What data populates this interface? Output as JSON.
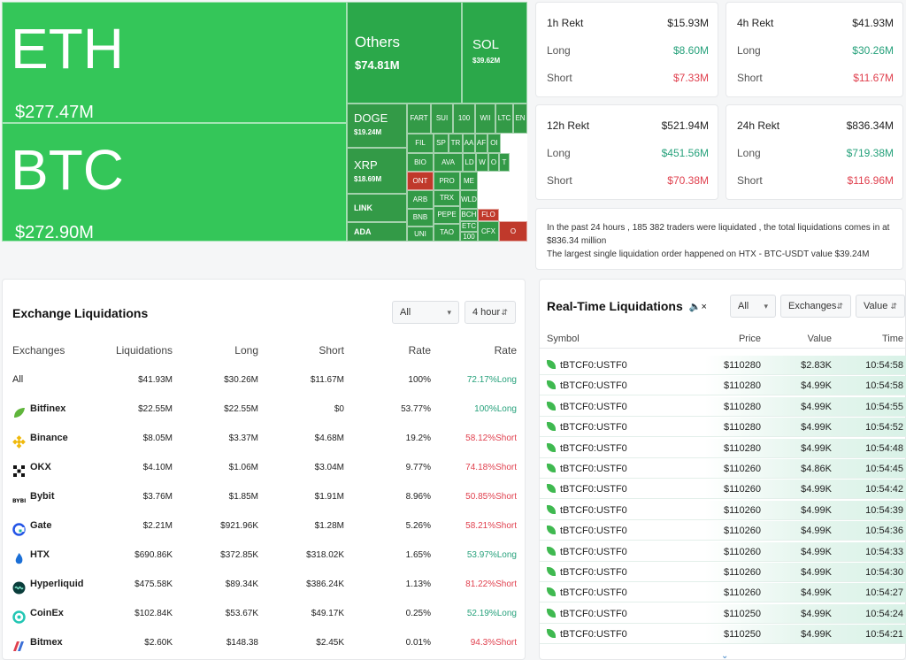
{
  "treemap": {
    "eth": {
      "symbol": "ETH",
      "amount": "$277.47M"
    },
    "btc": {
      "symbol": "BTC",
      "amount": "$272.90M"
    },
    "others": {
      "symbol": "Others",
      "amount": "$74.81M"
    },
    "sol": {
      "symbol": "SOL",
      "amount": "$39.62M"
    },
    "doge": {
      "symbol": "DOGE",
      "amount": "$19.24M"
    },
    "xrp": {
      "symbol": "XRP",
      "amount": "$18.69M"
    },
    "link": {
      "symbol": "LINK"
    },
    "ada": {
      "symbol": "ADA"
    },
    "small": [
      "FART",
      "SUI",
      "100",
      "WII",
      "LTC",
      "EN",
      "FIL",
      "SP",
      "TR",
      "AA",
      "AF",
      "OI",
      "BIO",
      "AVA",
      "LD",
      "W",
      "O",
      "T",
      "ONT",
      "PRO",
      "ME",
      "TRX",
      "WLD",
      "ARB",
      "BNB",
      "PEPE",
      "BCH",
      "ETC",
      "FLO",
      "UNI",
      "TAO",
      "100",
      "CFX",
      "O"
    ]
  },
  "rekt": [
    {
      "title": "1h Rekt",
      "total": "$15.93M",
      "long_label": "Long",
      "long": "$8.60M",
      "short_label": "Short",
      "short": "$7.33M"
    },
    {
      "title": "4h Rekt",
      "total": "$41.93M",
      "long_label": "Long",
      "long": "$30.26M",
      "short_label": "Short",
      "short": "$11.67M"
    },
    {
      "title": "12h Rekt",
      "total": "$521.94M",
      "long_label": "Long",
      "long": "$451.56M",
      "short_label": "Short",
      "short": "$70.38M"
    },
    {
      "title": "24h Rekt",
      "total": "$836.34M",
      "long_label": "Long",
      "long": "$719.38M",
      "short_label": "Short",
      "short": "$116.96M"
    }
  ],
  "summary": {
    "line1": "In the past 24 hours , 185 382 traders were liquidated , the total liquidations comes in at $836.34 million",
    "line2": "The largest single liquidation order happened on HTX - BTC-USDT value $39.24M"
  },
  "exchange": {
    "title": "Exchange Liquidations",
    "filter": "All",
    "period": "4 hour",
    "headers": [
      "Exchanges",
      "Liquidations",
      "Long",
      "Short",
      "Rate",
      "Rate"
    ],
    "rows": [
      {
        "name": "All",
        "liq": "$41.93M",
        "long": "$30.26M",
        "short": "$11.67M",
        "rate": "100%",
        "rate2": "72.17%Long",
        "dir": "long",
        "icon": "none"
      },
      {
        "name": "Bitfinex",
        "liq": "$22.55M",
        "long": "$22.55M",
        "short": "$0",
        "rate": "53.77%",
        "rate2": "100%Long",
        "dir": "long",
        "icon": "bitfinex-icon"
      },
      {
        "name": "Binance",
        "liq": "$8.05M",
        "long": "$3.37M",
        "short": "$4.68M",
        "rate": "19.2%",
        "rate2": "58.12%Short",
        "dir": "short",
        "icon": "binance-icon"
      },
      {
        "name": "OKX",
        "liq": "$4.10M",
        "long": "$1.06M",
        "short": "$3.04M",
        "rate": "9.77%",
        "rate2": "74.18%Short",
        "dir": "short",
        "icon": "okx-icon"
      },
      {
        "name": "Bybit",
        "liq": "$3.76M",
        "long": "$1.85M",
        "short": "$1.91M",
        "rate": "8.96%",
        "rate2": "50.85%Short",
        "dir": "short",
        "icon": "bybit-icon"
      },
      {
        "name": "Gate",
        "liq": "$2.21M",
        "long": "$921.96K",
        "short": "$1.28M",
        "rate": "5.26%",
        "rate2": "58.21%Short",
        "dir": "short",
        "icon": "gate-icon"
      },
      {
        "name": "HTX",
        "liq": "$690.86K",
        "long": "$372.85K",
        "short": "$318.02K",
        "rate": "1.65%",
        "rate2": "53.97%Long",
        "dir": "long",
        "icon": "htx-icon"
      },
      {
        "name": "Hyperliquid",
        "liq": "$475.58K",
        "long": "$89.34K",
        "short": "$386.24K",
        "rate": "1.13%",
        "rate2": "81.22%Short",
        "dir": "short",
        "icon": "hyperliquid-icon"
      },
      {
        "name": "CoinEx",
        "liq": "$102.84K",
        "long": "$53.67K",
        "short": "$49.17K",
        "rate": "0.25%",
        "rate2": "52.19%Long",
        "dir": "long",
        "icon": "coinex-icon"
      },
      {
        "name": "Bitmex",
        "liq": "$2.60K",
        "long": "$148.38",
        "short": "$2.45K",
        "rate": "0.01%",
        "rate2": "94.3%Short",
        "dir": "short",
        "icon": "bitmex-icon"
      }
    ]
  },
  "realtime": {
    "title": "Real-Time Liquidations",
    "filter": "All",
    "exchanges": "Exchanges",
    "value_filter": "Value",
    "headers": [
      "Symbol",
      "Price",
      "Value",
      "Time"
    ],
    "rows": [
      {
        "symbol": "tBTCF0:USTF0",
        "price": "$110280",
        "value": "$2.83K",
        "time": "10:54:58"
      },
      {
        "symbol": "tBTCF0:USTF0",
        "price": "$110280",
        "value": "$4.99K",
        "time": "10:54:58"
      },
      {
        "symbol": "tBTCF0:USTF0",
        "price": "$110280",
        "value": "$4.99K",
        "time": "10:54:55"
      },
      {
        "symbol": "tBTCF0:USTF0",
        "price": "$110280",
        "value": "$4.99K",
        "time": "10:54:52"
      },
      {
        "symbol": "tBTCF0:USTF0",
        "price": "$110280",
        "value": "$4.99K",
        "time": "10:54:48"
      },
      {
        "symbol": "tBTCF0:USTF0",
        "price": "$110260",
        "value": "$4.86K",
        "time": "10:54:45"
      },
      {
        "symbol": "tBTCF0:USTF0",
        "price": "$110260",
        "value": "$4.99K",
        "time": "10:54:42"
      },
      {
        "symbol": "tBTCF0:USTF0",
        "price": "$110260",
        "value": "$4.99K",
        "time": "10:54:39"
      },
      {
        "symbol": "tBTCF0:USTF0",
        "price": "$110260",
        "value": "$4.99K",
        "time": "10:54:36"
      },
      {
        "symbol": "tBTCF0:USTF0",
        "price": "$110260",
        "value": "$4.99K",
        "time": "10:54:33"
      },
      {
        "symbol": "tBTCF0:USTF0",
        "price": "$110260",
        "value": "$4.99K",
        "time": "10:54:30"
      },
      {
        "symbol": "tBTCF0:USTF0",
        "price": "$110260",
        "value": "$4.99K",
        "time": "10:54:27"
      },
      {
        "symbol": "tBTCF0:USTF0",
        "price": "$110250",
        "value": "$4.99K",
        "time": "10:54:24"
      },
      {
        "symbol": "tBTCF0:USTF0",
        "price": "$110250",
        "value": "$4.99K",
        "time": "10:54:21"
      }
    ]
  },
  "colors": {
    "long": "#26a17b",
    "short": "#e0404e",
    "treemap_green": "#34c659",
    "treemap_red": "#c0392b"
  }
}
